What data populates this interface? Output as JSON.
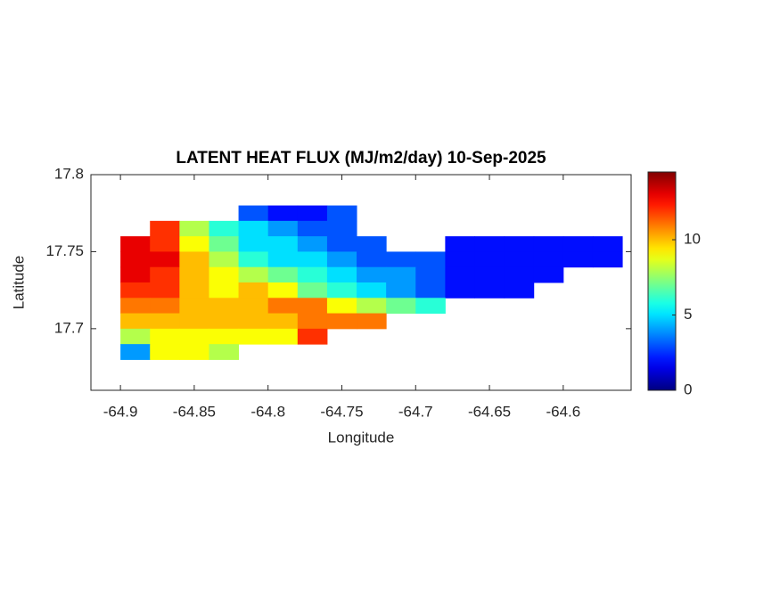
{
  "chart_data": {
    "type": "heatmap",
    "title": "LATENT HEAT FLUX (MJ/m2/day) 10-Sep-2025",
    "x_label": "Longitude",
    "y_label": "Latitude",
    "x": [
      -64.89,
      -64.87,
      -64.85,
      -64.83,
      -64.81,
      -64.79,
      -64.77,
      -64.75,
      -64.73,
      -64.71,
      -64.69,
      -64.67,
      -64.65,
      -64.63,
      -64.61,
      -64.59,
      -64.57
    ],
    "y": [
      17.775,
      17.765,
      17.755,
      17.745,
      17.735,
      17.725,
      17.715,
      17.705,
      17.695,
      17.685
    ],
    "values": [
      [
        null,
        null,
        null,
        null,
        3,
        2,
        2,
        3,
        null,
        null,
        null,
        null,
        null,
        null,
        null,
        null,
        null
      ],
      [
        null,
        12,
        8,
        6,
        5,
        4,
        3,
        3,
        null,
        null,
        null,
        null,
        null,
        null,
        null,
        null,
        null
      ],
      [
        13,
        12,
        9,
        7,
        5,
        5,
        4,
        3,
        3,
        null,
        null,
        2,
        2,
        2,
        2,
        2,
        2
      ],
      [
        13,
        13,
        10,
        8,
        6,
        5,
        5,
        4,
        3,
        3,
        3,
        2,
        2,
        2,
        2,
        2,
        2
      ],
      [
        13,
        12,
        10,
        9,
        8,
        7,
        6,
        5,
        4,
        4,
        3,
        2,
        2,
        2,
        2,
        null,
        null
      ],
      [
        12,
        12,
        10,
        9,
        10,
        9,
        7,
        6,
        5,
        4,
        3,
        2,
        2,
        2,
        null,
        null,
        null
      ],
      [
        11,
        11,
        10,
        10,
        10,
        11,
        11,
        9,
        8,
        7,
        6,
        null,
        null,
        null,
        null,
        null,
        null
      ],
      [
        10,
        10,
        10,
        10,
        10,
        10,
        11,
        11,
        11,
        null,
        null,
        null,
        null,
        null,
        null,
        null,
        null
      ],
      [
        8,
        9,
        9,
        9,
        9,
        9,
        12,
        null,
        null,
        null,
        null,
        null,
        null,
        null,
        null,
        null,
        null
      ],
      [
        4,
        9,
        9,
        8,
        null,
        null,
        null,
        null,
        null,
        null,
        null,
        null,
        null,
        null,
        null,
        null,
        null
      ]
    ],
    "cell_width": 0.02,
    "cell_height": 0.01,
    "xlim": [
      -64.92,
      -64.554
    ],
    "ylim": [
      17.66,
      17.8
    ],
    "xticks": [
      -64.9,
      -64.85,
      -64.8,
      -64.75,
      -64.7,
      -64.65,
      -64.6
    ],
    "yticks": [
      17.7,
      17.75,
      17.8
    ],
    "colormap": "jet",
    "clim": [
      0,
      14.5
    ],
    "cticks": [
      0,
      5,
      10
    ]
  }
}
